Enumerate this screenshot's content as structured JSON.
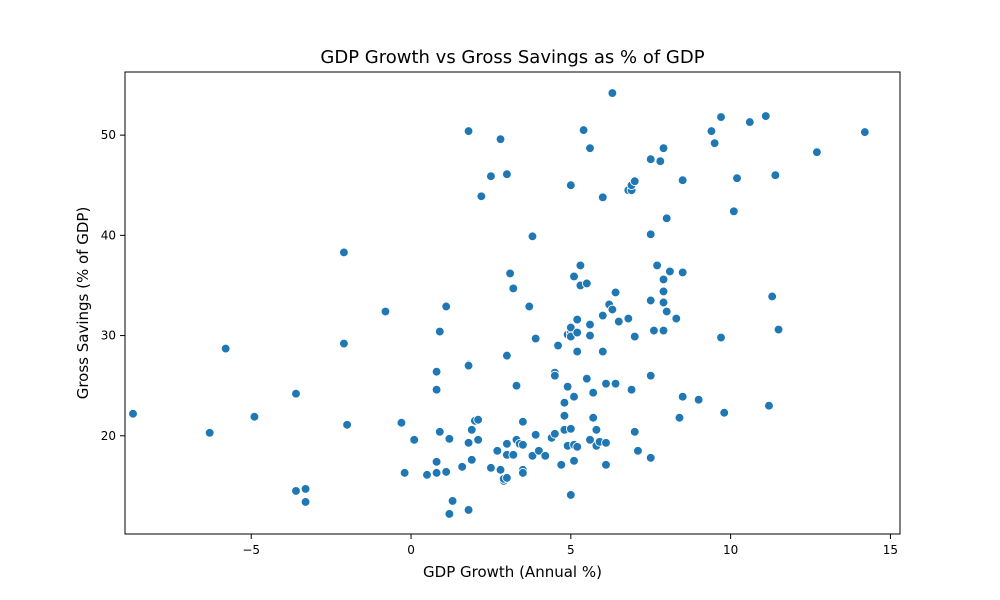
{
  "chart_data": {
    "type": "scatter",
    "title": "GDP Growth vs Gross Savings as % of GDP",
    "xlabel": "GDP Growth (Annual %)",
    "ylabel": "Gross Savings (% of GDP)",
    "xlim": [
      -8.95,
      15.3
    ],
    "ylim": [
      10.2,
      56.3
    ],
    "xticks": [
      -5,
      0,
      5,
      10,
      15
    ],
    "xtick_labels": [
      "−5",
      "0",
      "5",
      "10",
      "15"
    ],
    "yticks": [
      20,
      30,
      40,
      50
    ],
    "ytick_labels": [
      "20",
      "30",
      "40",
      "50"
    ],
    "grid": false,
    "marker_color": "#1f77b4",
    "points": [
      [
        -8.7,
        22.2
      ],
      [
        -6.3,
        20.3
      ],
      [
        -5.8,
        28.7
      ],
      [
        -4.9,
        21.9
      ],
      [
        -3.6,
        24.2
      ],
      [
        -3.6,
        14.5
      ],
      [
        -3.3,
        14.7
      ],
      [
        -3.3,
        13.4
      ],
      [
        -2.1,
        38.3
      ],
      [
        -2.1,
        29.2
      ],
      [
        -2.0,
        21.1
      ],
      [
        -0.8,
        32.4
      ],
      [
        -0.3,
        21.3
      ],
      [
        -0.2,
        16.3
      ],
      [
        0.1,
        19.6
      ],
      [
        0.5,
        16.1
      ],
      [
        0.8,
        26.4
      ],
      [
        0.8,
        24.6
      ],
      [
        0.8,
        17.4
      ],
      [
        0.8,
        16.3
      ],
      [
        0.9,
        30.4
      ],
      [
        0.9,
        20.4
      ],
      [
        1.1,
        32.9
      ],
      [
        1.1,
        16.4
      ],
      [
        1.2,
        19.7
      ],
      [
        1.2,
        12.2
      ],
      [
        1.3,
        13.5
      ],
      [
        1.6,
        16.9
      ],
      [
        1.8,
        50.4
      ],
      [
        1.8,
        27.1
      ],
      [
        1.8,
        12.6
      ],
      [
        1.8,
        27.0
      ],
      [
        1.8,
        19.3
      ],
      [
        1.9,
        20.6
      ],
      [
        1.9,
        17.6
      ],
      [
        2.0,
        21.5
      ],
      [
        2.1,
        21.6
      ],
      [
        2.1,
        19.6
      ],
      [
        2.2,
        43.9
      ],
      [
        2.5,
        45.9
      ],
      [
        2.5,
        16.8
      ],
      [
        2.7,
        18.5
      ],
      [
        2.8,
        49.6
      ],
      [
        2.8,
        16.6
      ],
      [
        2.9,
        15.5
      ],
      [
        2.9,
        15.7
      ],
      [
        3.0,
        46.1
      ],
      [
        3.0,
        15.8
      ],
      [
        3.0,
        19.2
      ],
      [
        3.0,
        18.1
      ],
      [
        3.0,
        28.0
      ],
      [
        3.1,
        36.2
      ],
      [
        3.2,
        34.7
      ],
      [
        3.2,
        18.1
      ],
      [
        3.3,
        19.6
      ],
      [
        3.3,
        25.0
      ],
      [
        3.4,
        19.2
      ],
      [
        3.5,
        16.6
      ],
      [
        3.5,
        16.3
      ],
      [
        3.5,
        21.4
      ],
      [
        3.5,
        19.1
      ],
      [
        3.7,
        32.9
      ],
      [
        3.8,
        18.0
      ],
      [
        3.8,
        39.9
      ],
      [
        3.9,
        29.7
      ],
      [
        3.9,
        20.1
      ],
      [
        4.0,
        18.5
      ],
      [
        4.2,
        18.0
      ],
      [
        4.4,
        19.8
      ],
      [
        4.5,
        20.2
      ],
      [
        4.5,
        26.3
      ],
      [
        4.5,
        26.0
      ],
      [
        4.6,
        29.0
      ],
      [
        4.7,
        17.1
      ],
      [
        4.8,
        23.3
      ],
      [
        4.8,
        22.0
      ],
      [
        4.8,
        20.6
      ],
      [
        4.9,
        30.1
      ],
      [
        4.9,
        24.9
      ],
      [
        4.9,
        19.0
      ],
      [
        5.0,
        45.0
      ],
      [
        5.0,
        14.1
      ],
      [
        5.0,
        30.3
      ],
      [
        5.0,
        30.8
      ],
      [
        5.0,
        20.7
      ],
      [
        5.0,
        29.9
      ],
      [
        5.1,
        35.9
      ],
      [
        5.1,
        23.9
      ],
      [
        5.1,
        17.5
      ],
      [
        5.1,
        19.1
      ],
      [
        5.2,
        18.9
      ],
      [
        5.2,
        31.6
      ],
      [
        5.2,
        28.4
      ],
      [
        5.2,
        30.3
      ],
      [
        5.3,
        35.0
      ],
      [
        5.3,
        37.0
      ],
      [
        5.4,
        50.5
      ],
      [
        5.5,
        35.2
      ],
      [
        5.5,
        25.7
      ],
      [
        5.6,
        48.7
      ],
      [
        5.6,
        31.1
      ],
      [
        5.6,
        30.0
      ],
      [
        5.6,
        19.6
      ],
      [
        5.7,
        24.3
      ],
      [
        5.7,
        21.8
      ],
      [
        5.8,
        20.6
      ],
      [
        5.8,
        19.0
      ],
      [
        5.9,
        19.4
      ],
      [
        6.0,
        43.8
      ],
      [
        6.0,
        32.0
      ],
      [
        6.0,
        28.4
      ],
      [
        6.1,
        25.2
      ],
      [
        6.1,
        19.3
      ],
      [
        6.1,
        17.1
      ],
      [
        6.2,
        33.1
      ],
      [
        6.3,
        54.2
      ],
      [
        6.3,
        32.6
      ],
      [
        6.4,
        34.3
      ],
      [
        6.4,
        25.2
      ],
      [
        6.5,
        31.4
      ],
      [
        6.8,
        44.5
      ],
      [
        6.8,
        31.7
      ],
      [
        6.9,
        44.5
      ],
      [
        6.9,
        45.0
      ],
      [
        6.9,
        24.6
      ],
      [
        7.0,
        45.4
      ],
      [
        7.0,
        29.9
      ],
      [
        7.0,
        20.4
      ],
      [
        7.1,
        18.5
      ],
      [
        7.5,
        47.6
      ],
      [
        7.5,
        33.5
      ],
      [
        7.5,
        26.0
      ],
      [
        7.5,
        17.8
      ],
      [
        7.5,
        40.1
      ],
      [
        7.6,
        30.5
      ],
      [
        7.7,
        37.0
      ],
      [
        7.8,
        47.4
      ],
      [
        7.9,
        48.7
      ],
      [
        7.9,
        35.6
      ],
      [
        7.9,
        30.5
      ],
      [
        7.9,
        33.3
      ],
      [
        7.9,
        34.4
      ],
      [
        8.0,
        41.7
      ],
      [
        8.0,
        32.4
      ],
      [
        8.1,
        36.4
      ],
      [
        8.3,
        31.7
      ],
      [
        8.4,
        21.8
      ],
      [
        8.5,
        45.5
      ],
      [
        8.5,
        36.3
      ],
      [
        8.5,
        23.9
      ],
      [
        9.0,
        23.6
      ],
      [
        9.4,
        50.4
      ],
      [
        9.5,
        49.2
      ],
      [
        9.7,
        51.8
      ],
      [
        9.7,
        29.8
      ],
      [
        9.8,
        22.3
      ],
      [
        10.1,
        42.4
      ],
      [
        10.2,
        45.7
      ],
      [
        10.6,
        51.3
      ],
      [
        11.1,
        51.9
      ],
      [
        11.2,
        23.0
      ],
      [
        11.3,
        33.9
      ],
      [
        11.4,
        46.0
      ],
      [
        11.5,
        30.6
      ],
      [
        12.7,
        48.3
      ],
      [
        14.2,
        50.3
      ]
    ]
  }
}
